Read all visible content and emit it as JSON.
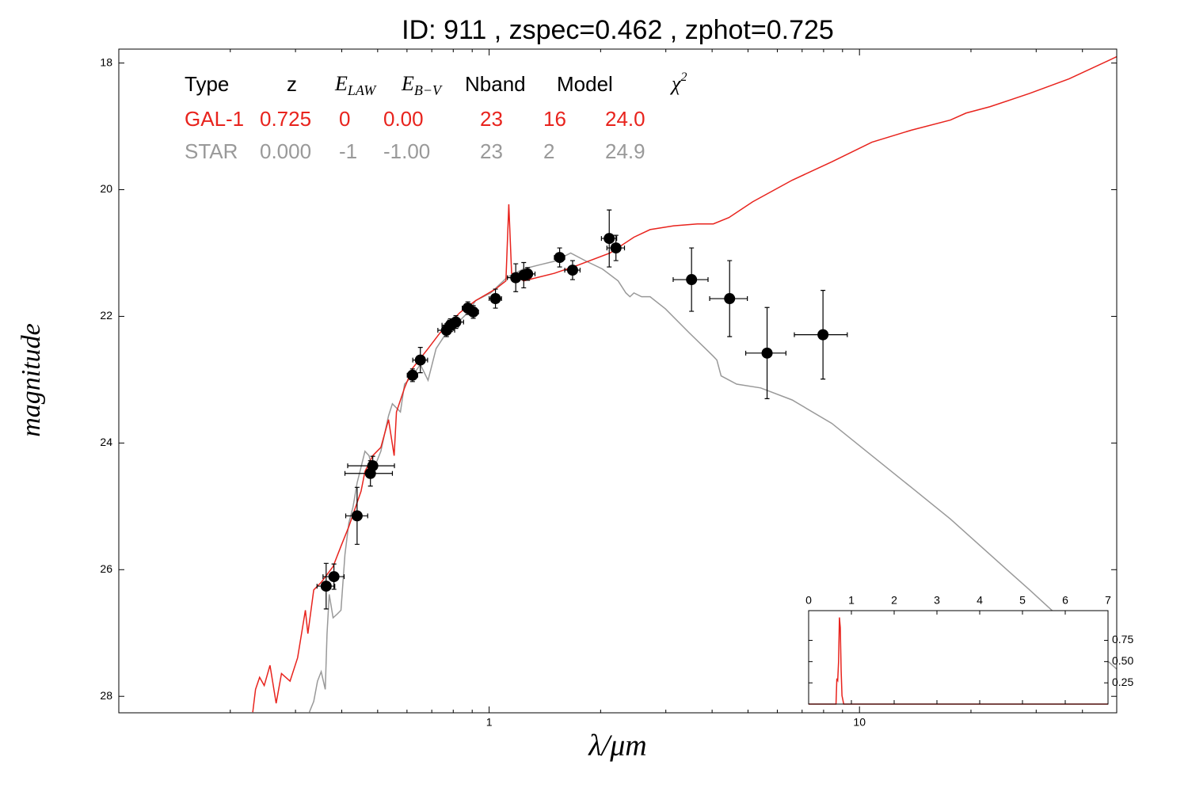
{
  "chart_data": [
    {
      "type": "scatter",
      "title": "ID:  911   , zspec=0.462 , zphot=0.725",
      "xlabel": "λ/μm",
      "ylabel": "magnitude",
      "xscale": "log",
      "xlim": [
        0.1,
        49.5
      ],
      "xticks": [
        1,
        10
      ],
      "xminorticks": [
        0.2,
        0.3,
        0.4,
        0.5,
        0.6,
        0.7,
        0.8,
        0.9,
        2,
        3,
        4,
        5,
        6,
        7,
        8,
        9,
        20,
        30,
        40
      ],
      "ylim": [
        28.26,
        17.78
      ],
      "yticks": [
        18,
        20,
        22,
        24,
        26,
        28
      ],
      "color": "#000000",
      "x": [
        0.363,
        0.381,
        0.44,
        0.478,
        0.485,
        0.621,
        0.652,
        0.767,
        0.786,
        0.813,
        0.876,
        0.906,
        1.04,
        1.18,
        1.24,
        1.27,
        1.55,
        1.68,
        2.11,
        2.2,
        3.52,
        4.46,
        5.63,
        7.97
      ],
      "values": [
        26.26,
        26.11,
        25.15,
        24.48,
        24.36,
        22.93,
        22.69,
        22.22,
        22.14,
        22.09,
        21.87,
        21.93,
        21.72,
        21.39,
        21.35,
        21.33,
        21.07,
        21.27,
        20.77,
        20.92,
        21.42,
        21.72,
        22.58,
        22.29
      ],
      "xerr": [
        0.02,
        0.025,
        0.03,
        0.07,
        0.07,
        0.02,
        0.03,
        0.04,
        0.04,
        0.04,
        0.03,
        0.03,
        0.04,
        0.06,
        0.06,
        0.06,
        0.05,
        0.08,
        0.1,
        0.12,
        0.38,
        0.52,
        0.7,
        1.3
      ],
      "yerr": [
        0.36,
        0.2,
        0.45,
        0.2,
        0.15,
        0.1,
        0.2,
        0.1,
        0.1,
        0.1,
        0.1,
        0.1,
        0.15,
        0.22,
        0.2,
        0.1,
        0.15,
        0.15,
        0.45,
        0.2,
        0.5,
        0.6,
        0.72,
        0.7
      ],
      "series": [
        {
          "color": "#999999",
          "x": [
            0.327,
            0.336,
            0.344,
            0.352,
            0.361,
            0.365,
            0.37,
            0.379,
            0.389,
            0.398,
            0.408,
            0.418,
            0.429,
            0.44,
            0.451,
            0.462,
            0.474,
            0.485,
            0.51,
            0.535,
            0.548,
            0.576,
            0.591,
            0.621,
            0.652,
            0.684,
            0.719,
            0.755,
            0.813,
            0.876,
            0.92,
            1.01,
            1.12,
            1.24,
            1.36,
            1.5,
            1.66,
            1.83,
            2.02,
            2.23,
            2.34,
            2.4,
            2.46,
            2.58,
            2.72,
            2.99,
            3.47,
            4.03,
            4.12,
            4.23,
            4.66,
            5.41,
            6.58,
            8.42,
            10.8,
            13.8,
            17.6,
            22.5,
            28.8,
            36.8,
            49.5
          ],
          "values": [
            28.25,
            28.08,
            27.76,
            27.61,
            27.89,
            27.01,
            26.39,
            26.76,
            26.7,
            26.64,
            25.76,
            25.26,
            25.01,
            24.63,
            24.38,
            24.13,
            24.2,
            24.45,
            24.13,
            23.57,
            23.38,
            23.51,
            23.07,
            22.94,
            22.76,
            23.01,
            22.51,
            22.32,
            22.13,
            21.94,
            21.75,
            21.63,
            21.38,
            21.25,
            21.19,
            21.13,
            21.0,
            21.13,
            21.25,
            21.44,
            21.63,
            21.69,
            21.63,
            21.69,
            21.69,
            21.88,
            22.26,
            22.63,
            22.69,
            22.94,
            23.07,
            23.13,
            23.32,
            23.69,
            24.2,
            24.7,
            25.2,
            25.76,
            26.32,
            26.89,
            27.57
          ]
        },
        {
          "color": "#e8231d",
          "x": [
            0.23,
            0.234,
            0.24,
            0.247,
            0.256,
            0.266,
            0.275,
            0.29,
            0.304,
            0.319,
            0.324,
            0.336,
            0.352,
            0.379,
            0.398,
            0.418,
            0.451,
            0.462,
            0.485,
            0.51,
            0.535,
            0.554,
            0.562,
            0.591,
            0.621,
            0.684,
            0.737,
            0.834,
            0.92,
            1.04,
            1.11,
            1.13,
            1.15,
            1.24,
            1.5,
            1.74,
            2.12,
            2.46,
            2.72,
            3.15,
            3.65,
            4.03,
            4.44,
            5.15,
            6.58,
            8.42,
            10.8,
            13.8,
            17.6,
            19.4,
            22.5,
            28.8,
            36.8,
            49.5
          ],
          "values": [
            28.25,
            27.89,
            27.7,
            27.83,
            27.51,
            28.11,
            27.64,
            27.76,
            27.39,
            26.64,
            27.01,
            26.32,
            26.2,
            25.95,
            25.63,
            25.32,
            24.76,
            24.45,
            24.2,
            24.07,
            23.63,
            24.2,
            23.51,
            23.13,
            22.82,
            22.51,
            22.26,
            21.94,
            21.75,
            21.57,
            21.44,
            20.23,
            21.32,
            21.44,
            21.32,
            21.19,
            21.0,
            20.75,
            20.63,
            20.57,
            20.54,
            20.54,
            20.44,
            20.19,
            19.85,
            19.56,
            19.25,
            19.06,
            18.9,
            18.79,
            18.69,
            18.48,
            18.25,
            17.9
          ]
        }
      ],
      "table": {
        "columns": [
          "Type",
          "z",
          {
            "text": "E",
            "sub": "LAW"
          },
          {
            "text": "E",
            "sub": "B−V"
          },
          "Nband",
          "Model",
          {
            "text": "χ",
            "sup": "2"
          }
        ],
        "rows": [
          {
            "color": "#e8231d",
            "cells": [
              "GAL-1",
              "0.725",
              "0",
              "0.00",
              "23",
              "16",
              "24.0"
            ]
          },
          {
            "color": "#999999",
            "cells": [
              "STAR",
              "0.000",
              "-1",
              "-1.00",
              "23",
              "2",
              "24.9"
            ]
          }
        ]
      }
    },
    {
      "type": "line",
      "xlim": [
        0,
        7
      ],
      "xticks": [
        0,
        1,
        2,
        3,
        4,
        5,
        6,
        7
      ],
      "ylim": [
        0,
        1.1
      ],
      "yticks": [
        0.25,
        {
          "value": 0.5,
          "label": "0.50"
        },
        0.75
      ],
      "color": "#e8231d",
      "x": [
        0,
        0.64,
        0.66,
        0.68,
        0.7,
        0.72,
        0.74,
        0.76,
        0.78,
        0.82,
        7
      ],
      "values": [
        0,
        0,
        0.3,
        0.28,
        0.5,
        1.02,
        0.9,
        0.4,
        0.1,
        0,
        0
      ]
    }
  ]
}
